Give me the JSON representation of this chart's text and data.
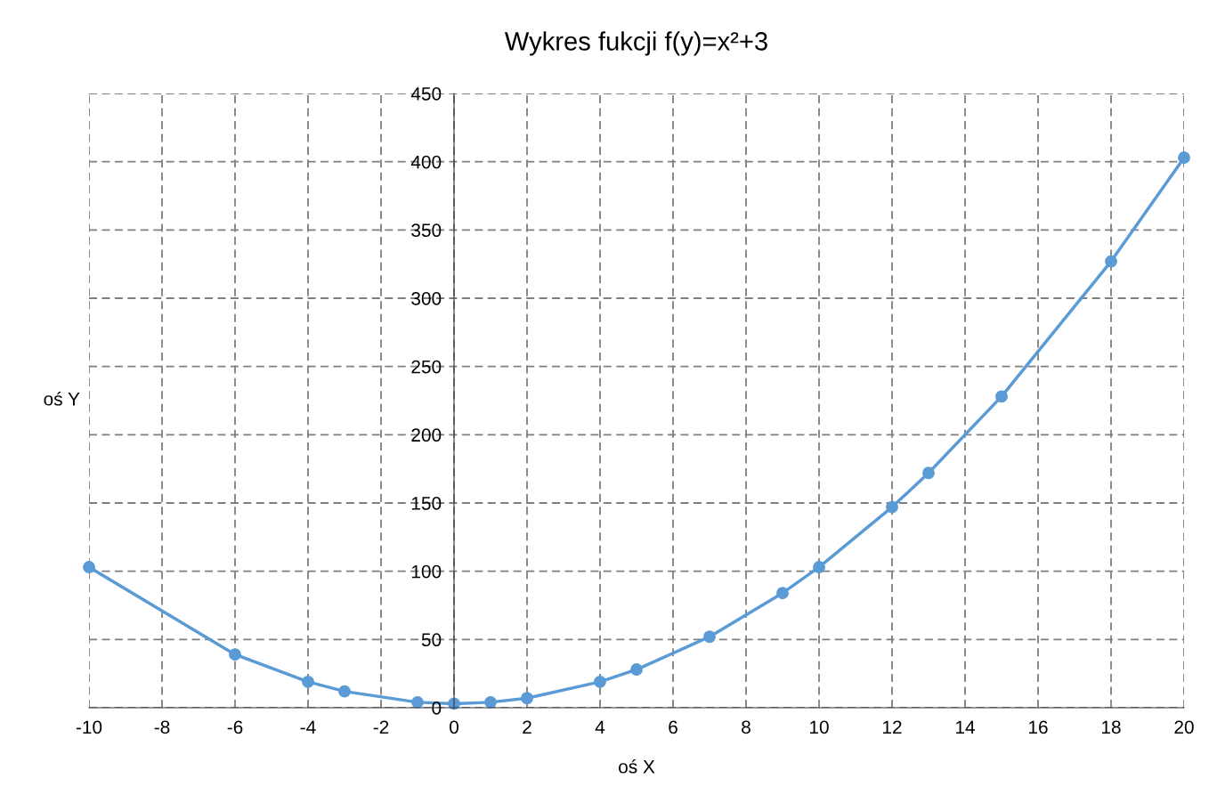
{
  "chart_data": {
    "type": "line",
    "title": "Wykres fukcji f(y)=x²+3",
    "xlabel": "oś X",
    "ylabel": "oś Y",
    "x": [
      -10,
      -6,
      -4,
      -3,
      -1,
      0,
      1,
      2,
      4,
      5,
      7,
      9,
      10,
      12,
      13,
      15,
      18,
      20
    ],
    "series": [
      {
        "color": "#5b9bd5",
        "values": [
          103,
          39,
          19,
          12,
          4,
          3,
          4,
          7,
          19,
          28,
          52,
          84,
          103,
          147,
          172,
          228,
          327,
          403
        ]
      }
    ],
    "xlim": [
      -10,
      20
    ],
    "xticks": [
      -10,
      -8,
      -6,
      -4,
      -2,
      0,
      2,
      4,
      6,
      8,
      10,
      12,
      14,
      16,
      18,
      20
    ],
    "ylim": [
      0,
      450
    ],
    "yticks": [
      0,
      50,
      100,
      150,
      200,
      250,
      300,
      350,
      400,
      450
    ],
    "grid": true,
    "marker": "circle",
    "line_style": "solid"
  }
}
